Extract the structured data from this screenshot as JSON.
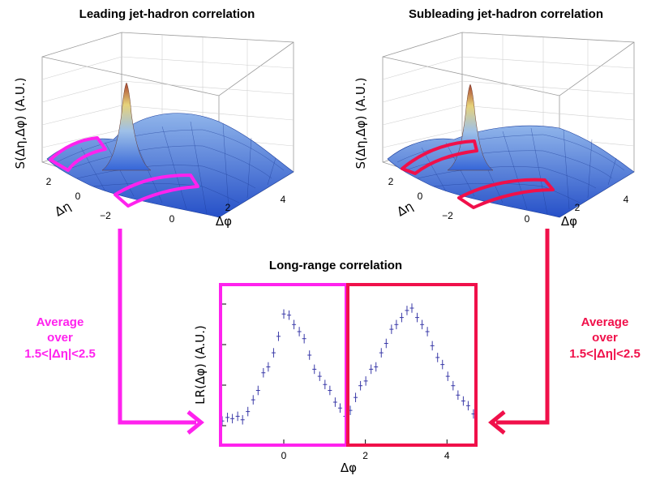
{
  "colors": {
    "magenta": "#ff22ee",
    "red": "#f0104a",
    "surface_low": "#2f5fd8",
    "surface_high": "#b0442e",
    "points": "#3a3aa8"
  },
  "panels": {
    "leading": {
      "title": "Leading jet-hadron correlation",
      "zlabel": "S(Δη,Δφ)   (A.U.)",
      "xlabel": "Δφ",
      "ylabel": "Δη",
      "phi_ticks": [
        "0",
        "2",
        "4"
      ],
      "eta_ticks": [
        "2",
        "0",
        "−2"
      ]
    },
    "subleading": {
      "title": "Subleading jet-hadron correlation",
      "zlabel": "S(Δη,Δφ)   (A.U.)",
      "xlabel": "Δφ",
      "ylabel": "Δη",
      "phi_ticks": [
        "0",
        "2",
        "4"
      ],
      "eta_ticks": [
        "2",
        "0",
        "−2"
      ]
    }
  },
  "annotations": {
    "left": [
      "Average",
      "over",
      "1.5<|Δη|<2.5"
    ],
    "right": [
      "Average",
      "over",
      "1.5<|Δη|<2.5"
    ]
  },
  "chart_data": {
    "type": "scatter",
    "title": "Long-range correlation",
    "xlabel": "Δφ",
    "ylabel": "LR(Δφ) (A.U.)",
    "xlim": [
      -1.57,
      4.71
    ],
    "x_ticks": [
      "0",
      "2",
      "4"
    ],
    "series": [
      {
        "x": [
          -1.51,
          -1.38,
          -1.26,
          -1.13,
          -1.01,
          -0.88,
          -0.75,
          -0.63,
          -0.5,
          -0.38,
          -0.25,
          -0.13,
          0.0,
          0.13,
          0.25,
          0.38,
          0.5,
          0.63,
          0.75,
          0.88,
          1.01,
          1.13,
          1.26,
          1.38,
          1.51,
          1.63,
          1.76,
          1.88,
          2.01,
          2.14,
          2.26,
          2.39,
          2.51,
          2.64,
          2.76,
          2.89,
          3.02,
          3.14,
          3.27,
          3.39,
          3.52,
          3.64,
          3.77,
          3.89,
          4.02,
          4.15,
          4.27,
          4.4,
          4.52,
          4.65
        ],
        "y": [
          0.04,
          0.07,
          0.06,
          0.08,
          0.05,
          0.12,
          0.22,
          0.3,
          0.45,
          0.5,
          0.62,
          0.76,
          0.95,
          0.94,
          0.86,
          0.8,
          0.74,
          0.6,
          0.48,
          0.42,
          0.35,
          0.3,
          0.2,
          0.15,
          0.08,
          0.13,
          0.24,
          0.34,
          0.38,
          0.48,
          0.5,
          0.62,
          0.7,
          0.82,
          0.86,
          0.92,
          0.98,
          1.0,
          0.92,
          0.86,
          0.8,
          0.68,
          0.58,
          0.52,
          0.42,
          0.34,
          0.26,
          0.21,
          0.17,
          0.1
        ],
        "err": [
          0.04,
          0.04,
          0.04,
          0.04,
          0.04,
          0.04,
          0.04,
          0.04,
          0.04,
          0.04,
          0.04,
          0.04,
          0.04,
          0.04,
          0.04,
          0.04,
          0.04,
          0.04,
          0.04,
          0.04,
          0.04,
          0.04,
          0.04,
          0.04,
          0.04,
          0.04,
          0.04,
          0.04,
          0.04,
          0.04,
          0.04,
          0.04,
          0.04,
          0.04,
          0.04,
          0.04,
          0.04,
          0.04,
          0.04,
          0.04,
          0.04,
          0.04,
          0.04,
          0.04,
          0.04,
          0.04,
          0.04,
          0.04,
          0.04,
          0.04
        ]
      }
    ]
  }
}
